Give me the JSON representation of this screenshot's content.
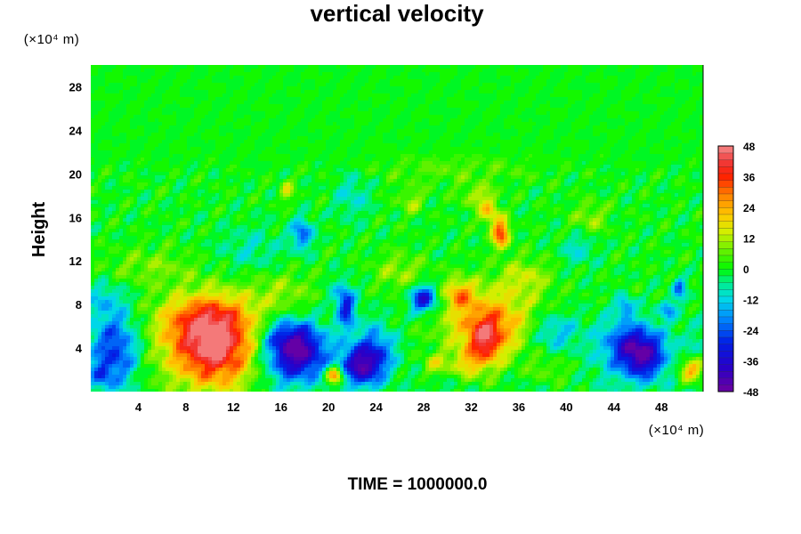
{
  "chart_data": {
    "type": "heatmap",
    "title": "vertical velocity",
    "xlabel": "",
    "ylabel": "Height",
    "x_unit": "(×10⁴ m)",
    "y_unit": "(×10⁴ m)",
    "xlim": [
      0,
      51.5
    ],
    "ylim": [
      0,
      30
    ],
    "x_ticks": [
      4,
      8,
      12,
      16,
      20,
      24,
      28,
      32,
      36,
      40,
      44,
      48
    ],
    "y_ticks": [
      4,
      8,
      12,
      16,
      20,
      24,
      28
    ],
    "colorbar": {
      "min": -48,
      "max": 48,
      "ticks": [
        48,
        36,
        24,
        12,
        0,
        -12,
        -24,
        -36,
        -48
      ],
      "levels": 36
    },
    "features": [
      {
        "x": 10,
        "y": 4.2,
        "amp": 52,
        "sx": 2.6,
        "sy": 2.8
      },
      {
        "x": 9.5,
        "y": 6.8,
        "amp": 14,
        "sx": 3.0,
        "sy": 1.5
      },
      {
        "x": 2.0,
        "y": 4.0,
        "amp": -22,
        "sx": 1.4,
        "sy": 2.5
      },
      {
        "x": 0.8,
        "y": 1.5,
        "amp": -14,
        "sx": 0.6,
        "sy": 0.8
      },
      {
        "x": 17.5,
        "y": 3.5,
        "amp": -40,
        "sx": 1.7,
        "sy": 1.8
      },
      {
        "x": 16.5,
        "y": 5.0,
        "amp": -14,
        "sx": 1.5,
        "sy": 1.2
      },
      {
        "x": 22.5,
        "y": 2.2,
        "amp": -36,
        "sx": 1.3,
        "sy": 1.2
      },
      {
        "x": 24.0,
        "y": 3.8,
        "amp": -20,
        "sx": 1.2,
        "sy": 1.5
      },
      {
        "x": 20.5,
        "y": 1.5,
        "amp": 32,
        "sx": 0.5,
        "sy": 0.6
      },
      {
        "x": 21.2,
        "y": 1.8,
        "amp": 10,
        "sx": 1.0,
        "sy": 1.0
      },
      {
        "x": 28.0,
        "y": 8.5,
        "amp": -36,
        "sx": 0.8,
        "sy": 0.9
      },
      {
        "x": 29.0,
        "y": 2.5,
        "amp": 16,
        "sx": 0.8,
        "sy": 0.8
      },
      {
        "x": 33.5,
        "y": 6.0,
        "amp": 30,
        "sx": 3.0,
        "sy": 2.3
      },
      {
        "x": 33.2,
        "y": 4.5,
        "amp": 22,
        "sx": 0.9,
        "sy": 1.5
      },
      {
        "x": 31.0,
        "y": 9.0,
        "amp": 22,
        "sx": 0.8,
        "sy": 0.9
      },
      {
        "x": 31.5,
        "y": 2.5,
        "amp": 14,
        "sx": 1.0,
        "sy": 1.0
      },
      {
        "x": 34.5,
        "y": 14.5,
        "amp": 36,
        "sx": 0.5,
        "sy": 0.9
      },
      {
        "x": 33.5,
        "y": 16.5,
        "amp": 20,
        "sx": 0.6,
        "sy": 0.8
      },
      {
        "x": 32.5,
        "y": 18.0,
        "amp": 12,
        "sx": 1.0,
        "sy": 0.7
      },
      {
        "x": 17.8,
        "y": 14.5,
        "amp": -24,
        "sx": 0.6,
        "sy": 1.0
      },
      {
        "x": 21.5,
        "y": 7.5,
        "amp": -26,
        "sx": 0.5,
        "sy": 1.2
      },
      {
        "x": 21.0,
        "y": 9.0,
        "amp": -12,
        "sx": 0.7,
        "sy": 1.0
      },
      {
        "x": 26.0,
        "y": 11.0,
        "amp": 10,
        "sx": 1.5,
        "sy": 1.2
      },
      {
        "x": 46.5,
        "y": 3.3,
        "amp": -38,
        "sx": 1.3,
        "sy": 1.6
      },
      {
        "x": 45.0,
        "y": 4.5,
        "amp": -18,
        "sx": 1.5,
        "sy": 1.5
      },
      {
        "x": 50.5,
        "y": 2.0,
        "amp": 28,
        "sx": 0.8,
        "sy": 0.8
      },
      {
        "x": 45.0,
        "y": 7.8,
        "amp": -20,
        "sx": 0.5,
        "sy": 0.6
      },
      {
        "x": 48.5,
        "y": 7.5,
        "amp": -18,
        "sx": 0.5,
        "sy": 0.6
      },
      {
        "x": 49.5,
        "y": 9.5,
        "amp": -22,
        "sx": 0.4,
        "sy": 0.7
      },
      {
        "x": 39.0,
        "y": 5.5,
        "amp": -16,
        "sx": 1.5,
        "sy": 1.3
      },
      {
        "x": 38.0,
        "y": 2.0,
        "amp": 8,
        "sx": 1.5,
        "sy": 1.0
      },
      {
        "x": 16.0,
        "y": 9.0,
        "amp": 10,
        "sx": 2.0,
        "sy": 1.5
      },
      {
        "x": 13.5,
        "y": 13.0,
        "amp": -8,
        "sx": 2.0,
        "sy": 1.5
      },
      {
        "x": 22.0,
        "y": 18.0,
        "amp": -10,
        "sx": 1.0,
        "sy": 1.5
      },
      {
        "x": 16.5,
        "y": 18.5,
        "amp": 14,
        "sx": 0.4,
        "sy": 0.7
      },
      {
        "x": 27.0,
        "y": 17.5,
        "amp": 10,
        "sx": 0.8,
        "sy": 0.8
      },
      {
        "x": 42.0,
        "y": 16.0,
        "amp": 10,
        "sx": 1.0,
        "sy": 1.0
      },
      {
        "x": 41.0,
        "y": 13.0,
        "amp": -10,
        "sx": 1.0,
        "sy": 1.0
      },
      {
        "x": 36.5,
        "y": 10.5,
        "amp": 12,
        "sx": 1.5,
        "sy": 1.2
      },
      {
        "x": 5.0,
        "y": 11.5,
        "amp": 8,
        "sx": 2.5,
        "sy": 1.2
      },
      {
        "x": 1.0,
        "y": 8.5,
        "amp": -10,
        "sx": 1.2,
        "sy": 1.0
      },
      {
        "x": 30.5,
        "y": 20.5,
        "amp": 6,
        "sx": 5.0,
        "sy": 1.0
      }
    ]
  },
  "footer": {
    "time_label": "TIME = 1000000.0"
  }
}
